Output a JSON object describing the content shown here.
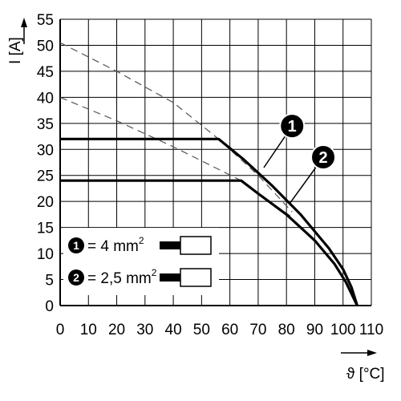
{
  "chart_data": {
    "type": "line",
    "title": "",
    "xlabel": "ϑ [°C]",
    "ylabel": "I [A]",
    "xlim": [
      0,
      110
    ],
    "ylim": [
      0,
      55
    ],
    "x_ticks": [
      "0",
      "10",
      "20",
      "30",
      "40",
      "50",
      "60",
      "70",
      "80",
      "90",
      "100",
      "110"
    ],
    "y_ticks": [
      "0",
      "5",
      "10",
      "15",
      "20",
      "25",
      "30",
      "35",
      "40",
      "45",
      "50",
      "55"
    ],
    "grid": true,
    "series": [
      {
        "marker": "1",
        "style": "solid",
        "points": [
          [
            0,
            32
          ],
          [
            56,
            32
          ],
          [
            65,
            28
          ],
          [
            75,
            23
          ],
          [
            85,
            17.5
          ],
          [
            95,
            11
          ],
          [
            100,
            7
          ],
          [
            103,
            3.5
          ],
          [
            105,
            0
          ]
        ]
      },
      {
        "marker": "2",
        "style": "solid",
        "points": [
          [
            0,
            24
          ],
          [
            64,
            24
          ],
          [
            70,
            21.5
          ],
          [
            80,
            17.5
          ],
          [
            90,
            12.5
          ],
          [
            97,
            8
          ],
          [
            101,
            4.5
          ],
          [
            105,
            0
          ]
        ]
      },
      {
        "marker": "1",
        "style": "dashed",
        "points": [
          [
            0,
            50.5
          ],
          [
            20,
            45
          ],
          [
            40,
            39
          ],
          [
            56,
            32
          ],
          [
            70,
            25
          ],
          [
            82,
            18
          ]
        ]
      },
      {
        "marker": "2",
        "style": "dashed",
        "points": [
          [
            0,
            40
          ],
          [
            20,
            35.5
          ],
          [
            40,
            30.5
          ],
          [
            64,
            24
          ],
          [
            70,
            21.5
          ],
          [
            82,
            17
          ]
        ]
      }
    ],
    "annotations": [
      {
        "marker": "1",
        "x": 82,
        "y": 34.5,
        "line_to": [
          72,
          26.5
        ]
      },
      {
        "marker": "2",
        "x": 93,
        "y": 28.5,
        "line_to": [
          81,
          19.5
        ]
      }
    ],
    "legend": {
      "position": "bottom-left",
      "entries": [
        {
          "marker": "1",
          "text": "= 4 mm",
          "sup": "2"
        },
        {
          "marker": "2",
          "text": "= 2,5 mm",
          "sup": "2"
        }
      ]
    },
    "colors": {
      "line": "#000000",
      "grid": "#000000",
      "dashed": "#555555"
    }
  }
}
